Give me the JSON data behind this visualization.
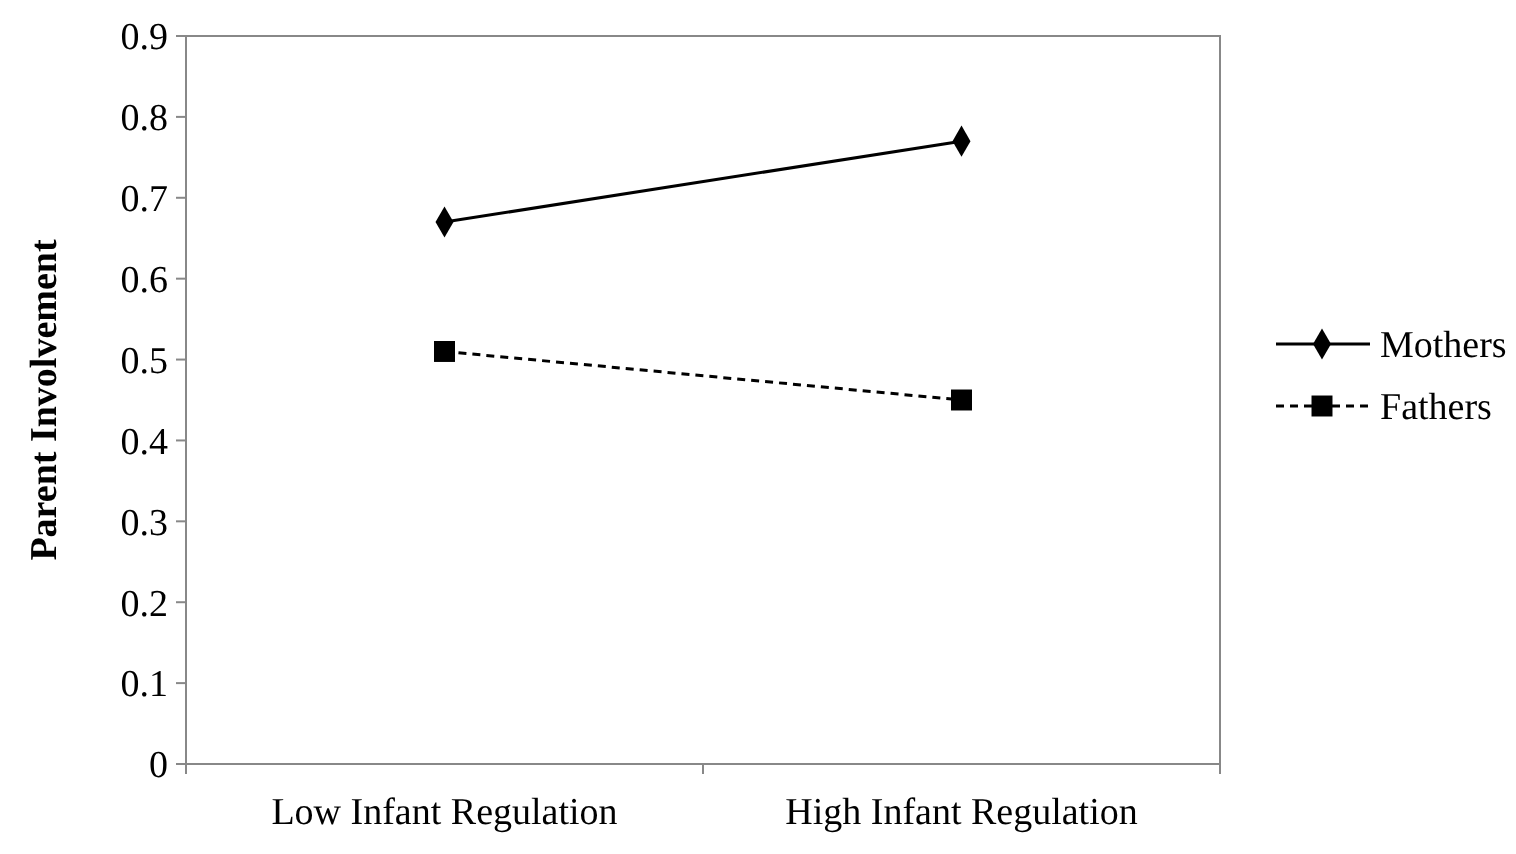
{
  "chart_data": {
    "type": "line",
    "ylabel": "Parent Involvement",
    "categories": [
      "Low Infant Regulation",
      "High Infant Regulation"
    ],
    "series": [
      {
        "name": "Mothers",
        "color": "#000000",
        "values": [
          0.67,
          0.77
        ],
        "marker": "diamond",
        "line_style": "solid"
      },
      {
        "name": "Fathers",
        "color": "#000000",
        "values": [
          0.51,
          0.45
        ],
        "marker": "square",
        "line_style": "dashed"
      }
    ],
    "ylim": [
      0,
      0.9
    ],
    "yticks": [
      0,
      0.1,
      0.2,
      0.3,
      0.4,
      0.5,
      0.6,
      0.7,
      0.8,
      0.9
    ],
    "grid": false,
    "legend": "right"
  }
}
